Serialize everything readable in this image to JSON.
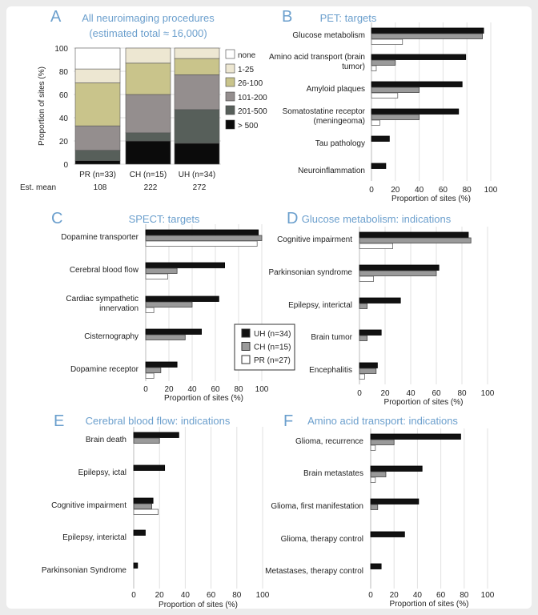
{
  "colors": {
    "UH": "#111111",
    "CH": "#9a9a9a",
    "PR": "#ffffff",
    "title": "#6b9fcd"
  },
  "chart_data": [
    {
      "panel": "A",
      "type": "bar",
      "stacked": true,
      "title": "All neuroimaging procedures",
      "subtitle": "(estimated total ≈ 16,000)",
      "ylabel": "Proportion of sites (%)",
      "ylim": [
        0,
        100
      ],
      "yticks": [
        0,
        20,
        40,
        60,
        80,
        100
      ],
      "grid": true,
      "legend": "right",
      "categories": [
        "PR (n=33)",
        "CH (n=15)",
        "UH (n=34)"
      ],
      "est_mean_label": "Est. mean",
      "est_mean": [
        "108",
        "222",
        "272"
      ],
      "series": [
        {
          "name": "> 500",
          "color": "#0b0b0b",
          "values": [
            3,
            20,
            18
          ]
        },
        {
          "name": "201-500",
          "color": "#575f5a",
          "values": [
            9,
            7,
            29
          ]
        },
        {
          "name": "101-200",
          "color": "#948e8e",
          "values": [
            21,
            33,
            30
          ]
        },
        {
          "name": "26-100",
          "color": "#c9c48b",
          "values": [
            37,
            27,
            14
          ]
        },
        {
          "name": "1-25",
          "color": "#ede7d2",
          "values": [
            12,
            13,
            9
          ]
        },
        {
          "name": "none",
          "color": "#ffffff",
          "values": [
            18,
            0,
            0
          ]
        }
      ]
    },
    {
      "panel": "B",
      "type": "bar",
      "orientation": "horizontal",
      "title": "PET: targets",
      "xlabel": "Proportion of sites (%)",
      "xlim": [
        0,
        100
      ],
      "xticks": [
        0,
        20,
        40,
        60,
        80,
        100
      ],
      "grid": true,
      "categories": [
        "Glucose metabolism",
        "Amino acid transport (brain\ntumor)",
        "Amyloid plaques",
        "Somatostatine receptor\n(meningeoma)",
        "Tau pathology",
        "Neuroinflammation"
      ],
      "series": [
        {
          "group": "UH",
          "values": [
            94,
            79,
            76,
            73,
            15,
            12
          ]
        },
        {
          "group": "CH",
          "values": [
            93,
            20,
            40,
            40,
            null,
            null
          ]
        },
        {
          "group": "PR",
          "values": [
            26,
            4,
            22,
            7,
            null,
            null
          ]
        }
      ]
    },
    {
      "panel": "C",
      "type": "bar",
      "orientation": "horizontal",
      "title": "SPECT: targets",
      "xlabel": "Proportion of sites (%)",
      "xlim": [
        0,
        100
      ],
      "xticks": [
        0,
        20,
        40,
        60,
        80,
        100
      ],
      "grid": true,
      "categories": [
        "Dopamine transporter",
        "Cerebral blood flow",
        "Cardiac sympathetic\ninnervation",
        "Cisternography",
        "Dopamine receptor"
      ],
      "series": [
        {
          "group": "UH",
          "values": [
            97,
            68,
            63,
            48,
            27
          ]
        },
        {
          "group": "CH",
          "values": [
            100,
            27,
            40,
            34,
            13
          ]
        },
        {
          "group": "PR",
          "values": [
            96,
            19,
            7,
            null,
            7
          ]
        }
      ],
      "legend": "bottom-right",
      "legend_entries": [
        {
          "group": "UH",
          "label": "UH (n=34)"
        },
        {
          "group": "CH",
          "label": "CH (n=15)"
        },
        {
          "group": "PR",
          "label": "PR (n=27)"
        }
      ]
    },
    {
      "panel": "D",
      "type": "bar",
      "orientation": "horizontal",
      "title": "Glucose metabolism: indications",
      "xlabel": "Proportion of sites (%)",
      "xlim": [
        0,
        100
      ],
      "xticks": [
        0,
        20,
        40,
        60,
        80,
        100
      ],
      "grid": true,
      "categories": [
        "Cognitive impairment",
        "Parkinsonian syndrome",
        "Epilepsy, interictal",
        "Brain tumor",
        "Encephalitis"
      ],
      "series": [
        {
          "group": "UH",
          "values": [
            85,
            62,
            32,
            17,
            14
          ]
        },
        {
          "group": "CH",
          "values": [
            87,
            60,
            6,
            6,
            13
          ]
        },
        {
          "group": "PR",
          "values": [
            26,
            11,
            null,
            null,
            4
          ]
        }
      ]
    },
    {
      "panel": "E",
      "type": "bar",
      "orientation": "horizontal",
      "title": "Cerebral blood flow: indications",
      "xlabel": "Proportion of sites (%)",
      "xlim": [
        0,
        100
      ],
      "xticks": [
        0,
        20,
        40,
        60,
        80,
        100
      ],
      "grid": true,
      "categories": [
        "Brain death",
        "Epilepsy, ictal",
        "Cognitive impairment",
        "Epilepsy, interictal",
        "Parkinsonian Syndrome"
      ],
      "series": [
        {
          "group": "UH",
          "values": [
            35,
            24,
            15,
            9,
            3
          ]
        },
        {
          "group": "CH",
          "values": [
            20,
            null,
            14,
            null,
            null
          ]
        },
        {
          "group": "PR",
          "values": [
            null,
            null,
            19,
            null,
            null
          ]
        }
      ]
    },
    {
      "panel": "F",
      "type": "bar",
      "orientation": "horizontal",
      "title": "Amino acid transport: indications",
      "xlabel": "Proportion of sites (%)",
      "xlim": [
        0,
        100
      ],
      "xticks": [
        0,
        20,
        40,
        60,
        80,
        100
      ],
      "grid": true,
      "categories": [
        "Glioma, recurrence",
        "Brain metastates",
        "Glioma, first manifestation",
        "Glioma, therapy control",
        "Metastases, therapy control"
      ],
      "series": [
        {
          "group": "UH",
          "values": [
            77,
            44,
            41,
            29,
            9
          ]
        },
        {
          "group": "CH",
          "values": [
            20,
            13,
            6,
            null,
            null
          ]
        },
        {
          "group": "PR",
          "values": [
            4,
            4,
            null,
            null,
            null
          ]
        }
      ]
    }
  ]
}
